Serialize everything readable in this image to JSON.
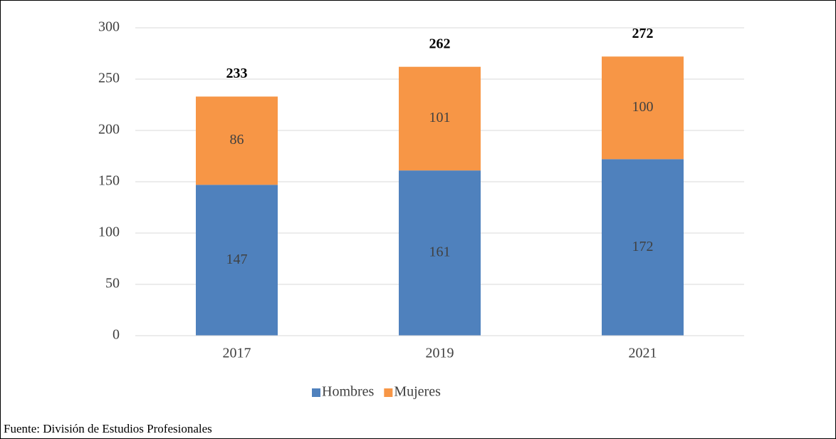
{
  "chart_data": {
    "type": "stacked_bar",
    "categories": [
      "2017",
      "2019",
      "2021"
    ],
    "series": [
      {
        "name": "Hombres",
        "color": "#4f81bd",
        "values": [
          147,
          161,
          172
        ]
      },
      {
        "name": "Mujeres",
        "color": "#f79646",
        "values": [
          86,
          101,
          100
        ]
      }
    ],
    "totals": [
      233,
      262,
      272
    ],
    "ylim": [
      0,
      300
    ],
    "yticks": [
      0,
      50,
      100,
      150,
      200,
      250,
      300
    ],
    "grid": true,
    "legend": "bottom",
    "source": "Fuente: División de Estudios Profesionales"
  }
}
